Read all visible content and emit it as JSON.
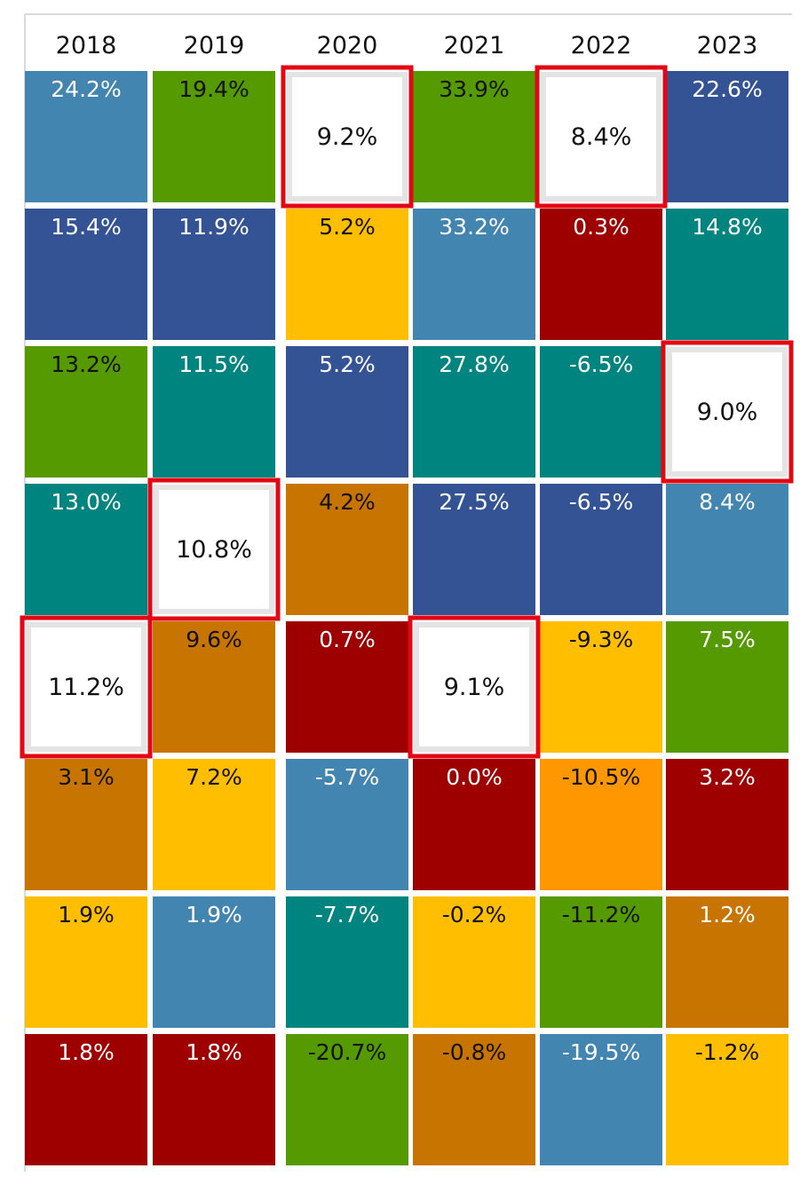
{
  "chart_data": {
    "type": "table",
    "columns": [
      "2018",
      "2019",
      "2020",
      "2021",
      "2022",
      "2023"
    ],
    "color_key": {
      "steel_blue": "#4185B0",
      "green": "#559A00",
      "navy": "#335395",
      "yellow": "#FFBE00",
      "teal": "#00847F",
      "dark_red": "#9E0000",
      "orange_brown": "#C87400",
      "orange": "#FF9800",
      "highlight_fill": "#FFFFFF",
      "highlight_border": "#E30613"
    },
    "cells": [
      [
        {
          "value": "24.2%",
          "color": "steel_blue",
          "text": "light"
        },
        {
          "value": "19.4%",
          "color": "green",
          "text": "dark"
        },
        {
          "value": "9.2%",
          "color": "highlight_fill",
          "text": "dark",
          "highlighted": true
        },
        {
          "value": "33.9%",
          "color": "green",
          "text": "dark"
        },
        {
          "value": "8.4%",
          "color": "highlight_fill",
          "text": "dark",
          "highlighted": true
        },
        {
          "value": "22.6%",
          "color": "navy",
          "text": "light"
        }
      ],
      [
        {
          "value": "15.4%",
          "color": "navy",
          "text": "light"
        },
        {
          "value": "11.9%",
          "color": "navy",
          "text": "light"
        },
        {
          "value": "5.2%",
          "color": "yellow",
          "text": "dark"
        },
        {
          "value": "33.2%",
          "color": "steel_blue",
          "text": "light"
        },
        {
          "value": "0.3%",
          "color": "dark_red",
          "text": "light"
        },
        {
          "value": "14.8%",
          "color": "teal",
          "text": "light"
        }
      ],
      [
        {
          "value": "13.2%",
          "color": "green",
          "text": "dark"
        },
        {
          "value": "11.5%",
          "color": "teal",
          "text": "light"
        },
        {
          "value": "5.2%",
          "color": "navy",
          "text": "light"
        },
        {
          "value": "27.8%",
          "color": "teal",
          "text": "light"
        },
        {
          "value": "-6.5%",
          "color": "teal",
          "text": "light"
        },
        {
          "value": "9.0%",
          "color": "highlight_fill",
          "text": "dark",
          "highlighted": true
        }
      ],
      [
        {
          "value": "13.0%",
          "color": "teal",
          "text": "light"
        },
        {
          "value": "10.8%",
          "color": "highlight_fill",
          "text": "dark",
          "highlighted": true
        },
        {
          "value": "4.2%",
          "color": "orange_brown",
          "text": "dark"
        },
        {
          "value": "27.5%",
          "color": "navy",
          "text": "light"
        },
        {
          "value": "-6.5%",
          "color": "navy",
          "text": "light"
        },
        {
          "value": "8.4%",
          "color": "steel_blue",
          "text": "light"
        }
      ],
      [
        {
          "value": "11.2%",
          "color": "highlight_fill",
          "text": "dark",
          "highlighted": true
        },
        {
          "value": "9.6%",
          "color": "orange_brown",
          "text": "dark"
        },
        {
          "value": "0.7%",
          "color": "dark_red",
          "text": "light"
        },
        {
          "value": "9.1%",
          "color": "highlight_fill",
          "text": "dark",
          "highlighted": true
        },
        {
          "value": "-9.3%",
          "color": "yellow",
          "text": "dark"
        },
        {
          "value": "7.5%",
          "color": "green",
          "text": "light"
        }
      ],
      [
        {
          "value": "3.1%",
          "color": "orange_brown",
          "text": "dark"
        },
        {
          "value": "7.2%",
          "color": "yellow",
          "text": "dark"
        },
        {
          "value": "-5.7%",
          "color": "steel_blue",
          "text": "light"
        },
        {
          "value": "0.0%",
          "color": "dark_red",
          "text": "light"
        },
        {
          "value": "-10.5%",
          "color": "orange",
          "text": "dark"
        },
        {
          "value": "3.2%",
          "color": "dark_red",
          "text": "light"
        }
      ],
      [
        {
          "value": "1.9%",
          "color": "yellow",
          "text": "dark"
        },
        {
          "value": "1.9%",
          "color": "steel_blue",
          "text": "light"
        },
        {
          "value": "-7.7%",
          "color": "teal",
          "text": "light"
        },
        {
          "value": "-0.2%",
          "color": "yellow",
          "text": "dark"
        },
        {
          "value": "-11.2%",
          "color": "green",
          "text": "dark"
        },
        {
          "value": "1.2%",
          "color": "orange_brown",
          "text": "light"
        }
      ],
      [
        {
          "value": "1.8%",
          "color": "dark_red",
          "text": "light"
        },
        {
          "value": "1.8%",
          "color": "dark_red",
          "text": "light"
        },
        {
          "value": "-20.7%",
          "color": "green",
          "text": "dark"
        },
        {
          "value": "-0.8%",
          "color": "orange_brown",
          "text": "dark"
        },
        {
          "value": "-19.5%",
          "color": "steel_blue",
          "text": "light"
        },
        {
          "value": "-1.2%",
          "color": "yellow",
          "text": "dark"
        }
      ]
    ]
  }
}
